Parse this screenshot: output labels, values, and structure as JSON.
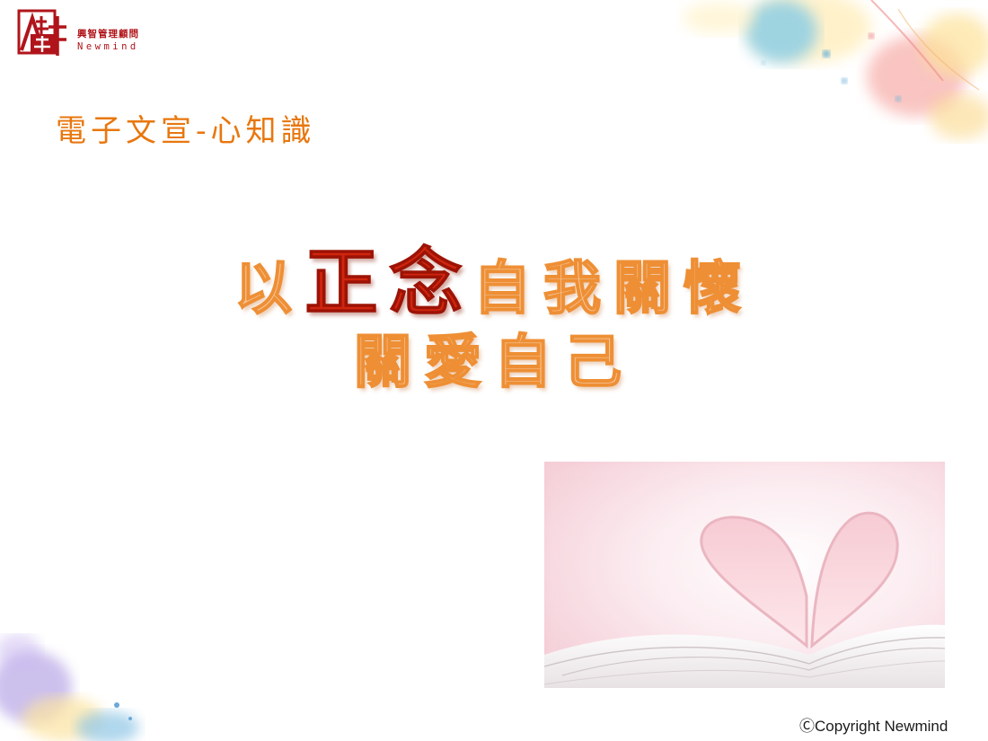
{
  "logo": {
    "name_cn": "興智管理顧問",
    "name_en": "Newmind"
  },
  "subtitle": "電子文宣-心知識",
  "title": {
    "line1": [
      {
        "text": "以",
        "style": "light"
      },
      {
        "text": "正念",
        "style": "red"
      },
      {
        "text": "自我關懷",
        "style": "light"
      }
    ],
    "line2": [
      {
        "text": "關愛自己",
        "style": "light"
      }
    ]
  },
  "colors": {
    "brand_red": "#b0141a",
    "subtitle_orange": "#e8770e",
    "title_outline": "#ee8f35",
    "title_red": "#d0250f"
  },
  "copyright": "ⒸCopyright Newmind"
}
